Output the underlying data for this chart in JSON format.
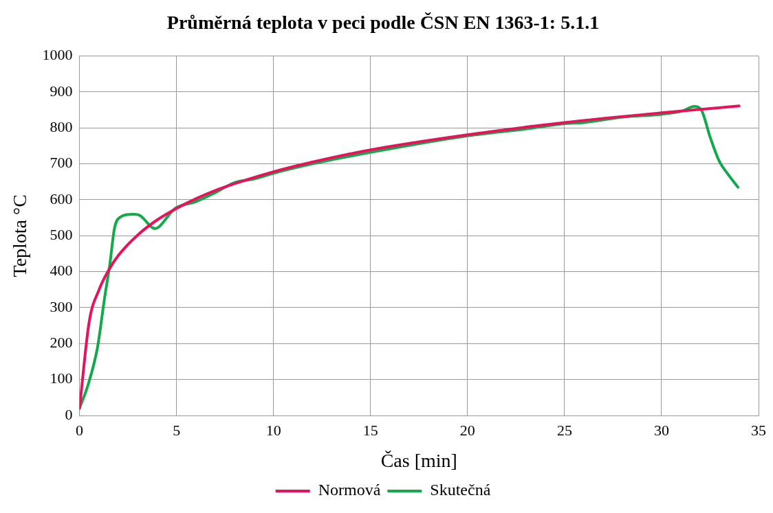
{
  "chart_data": {
    "type": "line",
    "title": "Průměrná teplota v peci podle ČSN EN 1363-1: 5.1.1",
    "xlabel": "Čas [min]",
    "ylabel": "Teplota °C",
    "xlim": [
      0,
      35
    ],
    "xticks": [
      0,
      5,
      10,
      15,
      20,
      25,
      30,
      35
    ],
    "ylim": [
      0,
      1000
    ],
    "yticks": [
      0,
      100,
      200,
      300,
      400,
      500,
      600,
      700,
      800,
      900,
      1000
    ],
    "grid": true,
    "legend": "bottom",
    "marker": "none",
    "line_style": "solid",
    "series": [
      {
        "name": "Normová",
        "color": "#e8125c",
        "x": [
          0,
          0.5,
          1,
          1.5,
          2,
          3,
          4,
          5,
          6,
          7,
          8,
          10,
          12,
          15,
          20,
          25,
          30,
          34
        ],
        "values": [
          20,
          261,
          349,
          404,
          445,
          502,
          544,
          576,
          603,
          626,
          645,
          678,
          705,
          739,
          781,
          815,
          842,
          861
        ]
      },
      {
        "name": "Skutečná",
        "color": "#13a84a",
        "x": [
          0,
          0.44,
          0.93,
          1.3,
          1.55,
          1.8,
          2.05,
          2.8,
          3.1,
          3.9,
          4.1,
          4.9,
          6,
          7,
          8,
          9,
          10,
          12,
          15,
          20,
          23,
          25,
          26,
          28,
          30,
          31.07,
          31.68,
          32.05,
          32.5,
          32.98,
          33.47,
          33.94
        ],
        "values": [
          20,
          85,
          190,
          330,
          415,
          520,
          550,
          560,
          557,
          520,
          525,
          575,
          595,
          620,
          648,
          658,
          674,
          700,
          732,
          778,
          797,
          812,
          815,
          830,
          838,
          847,
          860,
          850,
          775,
          707,
          668,
          635
        ]
      }
    ]
  }
}
